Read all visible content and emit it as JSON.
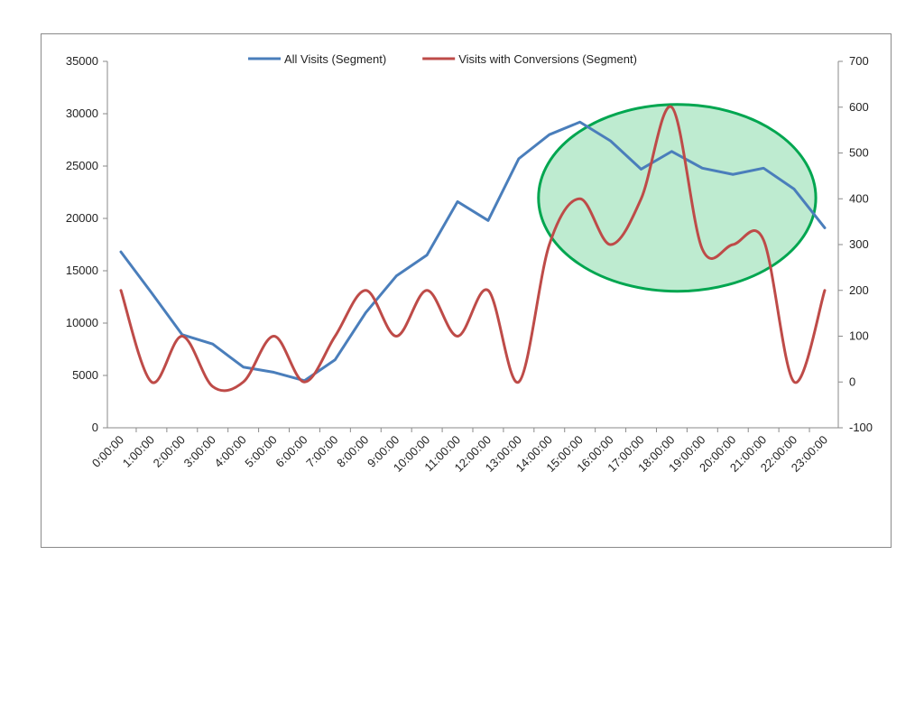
{
  "chart_data": {
    "type": "line",
    "x": [
      "0:00:00",
      "1:00:00",
      "2:00:00",
      "3:00:00",
      "4:00:00",
      "5:00:00",
      "6:00:00",
      "7:00:00",
      "8:00:00",
      "9:00:00",
      "10:00:00",
      "11:00:00",
      "12:00:00",
      "13:00:00",
      "14:00:00",
      "15:00:00",
      "16:00:00",
      "17:00:00",
      "18:00:00",
      "19:00:00",
      "20:00:00",
      "21:00:00",
      "22:00:00",
      "23:00:00"
    ],
    "series": [
      {
        "name": "All Visits (Segment)",
        "axis": "left",
        "color": "#4a7ebb",
        "smooth": false,
        "values": [
          16800,
          12900,
          8900,
          8000,
          5800,
          5300,
          4500,
          6500,
          11000,
          14500,
          16500,
          21600,
          19800,
          25700,
          28000,
          29200,
          27400,
          24700,
          26400,
          24800,
          24200,
          24800,
          22800,
          19100
        ]
      },
      {
        "name": "Visits with Conversions (Segment)",
        "axis": "right",
        "color": "#be4b48",
        "smooth": true,
        "values": [
          200,
          0,
          100,
          -10,
          0,
          100,
          0,
          100,
          200,
          100,
          200,
          100,
          200,
          0,
          300,
          400,
          300,
          400,
          600,
          290,
          300,
          310,
          0,
          200
        ]
      }
    ],
    "y_left": {
      "min": 0,
      "max": 35000,
      "step": 5000
    },
    "y_right": {
      "min": -100,
      "max": 700,
      "step": 100
    },
    "legend_position": "top",
    "grid": false,
    "annotation": {
      "shape": "ellipse",
      "stroke": "#00a650",
      "fill": "#b3e8c8",
      "x_from": "14:00:00",
      "x_to": "22:00:00",
      "y_right_from": 200,
      "y_right_to": 600
    }
  }
}
